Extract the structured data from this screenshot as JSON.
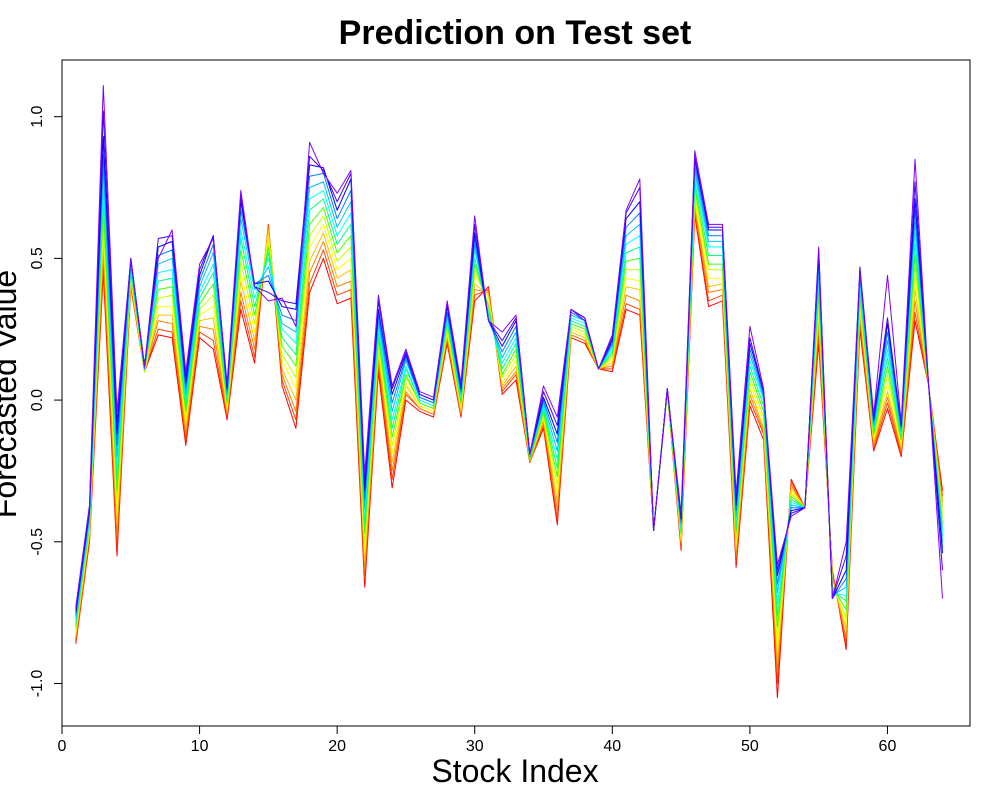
{
  "chart_data": {
    "type": "line",
    "title": "Prediction on Test set",
    "xlabel": "Stock Index",
    "ylabel": "Forecasted Value",
    "xlim": [
      0,
      66
    ],
    "ylim": [
      -1.15,
      1.2
    ],
    "xticks": [
      0,
      10,
      20,
      30,
      40,
      50,
      60
    ],
    "yticks": [
      -1.0,
      -0.5,
      0.0,
      0.5,
      1.0
    ],
    "ytick_labels": [
      "-1.0",
      "-0.5",
      "0.0",
      "0.5",
      "1.0"
    ],
    "x": [
      1,
      2,
      3,
      4,
      5,
      6,
      7,
      8,
      9,
      10,
      11,
      12,
      13,
      14,
      15,
      16,
      17,
      18,
      19,
      20,
      21,
      22,
      23,
      24,
      25,
      26,
      27,
      28,
      29,
      30,
      31,
      32,
      33,
      34,
      35,
      36,
      37,
      38,
      39,
      40,
      41,
      42,
      43,
      44,
      45,
      46,
      47,
      48,
      49,
      50,
      51,
      52,
      53,
      54,
      55,
      56,
      57,
      58,
      59,
      60,
      61,
      62,
      63,
      64
    ],
    "series_colors": [
      "#ff0000",
      "#ff4000",
      "#ff8000",
      "#ffbf00",
      "#ffff00",
      "#bfff00",
      "#40ff00",
      "#00ff80",
      "#00ffff",
      "#00bfff",
      "#0080ff",
      "#0000ff",
      "#4000ff",
      "#8000ff"
    ],
    "series": [
      {
        "values": [
          -0.86,
          -0.5,
          0.45,
          -0.55,
          0.4,
          0.1,
          0.23,
          0.22,
          -0.16,
          0.22,
          0.18,
          -0.07,
          0.32,
          0.13,
          0.62,
          0.05,
          -0.1,
          0.38,
          0.5,
          0.34,
          0.36,
          -0.66,
          0.1,
          -0.31,
          0.0,
          -0.04,
          -0.06,
          0.2,
          -0.06,
          0.35,
          0.4,
          0.02,
          0.07,
          -0.22,
          -0.1,
          -0.44,
          0.22,
          0.2,
          0.11,
          0.1,
          0.32,
          0.3,
          -0.46,
          0.03,
          -0.53,
          0.65,
          0.33,
          0.35,
          -0.59,
          -0.02,
          -0.14,
          -1.05,
          -0.28,
          -0.38,
          0.2,
          -0.6,
          -0.88,
          0.25,
          -0.18,
          -0.03,
          -0.2,
          0.28,
          0.05,
          -0.32
        ]
      },
      {
        "values": [
          -0.85,
          -0.49,
          0.48,
          -0.52,
          0.4,
          0.1,
          0.25,
          0.24,
          -0.14,
          0.24,
          0.21,
          -0.06,
          0.35,
          0.15,
          0.62,
          0.07,
          -0.07,
          0.41,
          0.53,
          0.37,
          0.39,
          -0.63,
          0.12,
          -0.28,
          0.02,
          -0.03,
          -0.05,
          0.21,
          -0.05,
          0.37,
          0.39,
          0.03,
          0.09,
          -0.22,
          -0.09,
          -0.42,
          0.23,
          0.21,
          0.11,
          0.11,
          0.34,
          0.32,
          -0.46,
          0.03,
          -0.52,
          0.66,
          0.35,
          0.37,
          -0.57,
          0.0,
          -0.12,
          -1.0,
          -0.29,
          -0.38,
          0.23,
          -0.61,
          -0.86,
          0.27,
          -0.17,
          -0.01,
          -0.19,
          0.31,
          0.05,
          -0.34
        ]
      },
      {
        "values": [
          -0.84,
          -0.48,
          0.52,
          -0.48,
          0.41,
          0.1,
          0.28,
          0.27,
          -0.12,
          0.26,
          0.25,
          -0.05,
          0.38,
          0.18,
          0.61,
          0.09,
          -0.04,
          0.45,
          0.56,
          0.4,
          0.42,
          -0.6,
          0.14,
          -0.25,
          0.03,
          -0.03,
          -0.05,
          0.22,
          -0.05,
          0.39,
          0.38,
          0.04,
          0.1,
          -0.22,
          -0.08,
          -0.39,
          0.23,
          0.21,
          0.11,
          0.12,
          0.37,
          0.35,
          -0.46,
          0.03,
          -0.51,
          0.68,
          0.38,
          0.39,
          -0.55,
          0.02,
          -0.11,
          -0.96,
          -0.3,
          -0.38,
          0.26,
          -0.62,
          -0.84,
          0.29,
          -0.16,
          0.01,
          -0.18,
          0.35,
          0.05,
          -0.36
        ]
      },
      {
        "values": [
          -0.83,
          -0.47,
          0.56,
          -0.44,
          0.42,
          0.1,
          0.3,
          0.3,
          -0.1,
          0.28,
          0.29,
          -0.04,
          0.42,
          0.21,
          0.6,
          0.11,
          0.0,
          0.49,
          0.59,
          0.43,
          0.46,
          -0.57,
          0.16,
          -0.22,
          0.05,
          -0.02,
          -0.04,
          0.23,
          -0.04,
          0.41,
          0.37,
          0.05,
          0.12,
          -0.21,
          -0.07,
          -0.36,
          0.24,
          0.22,
          0.11,
          0.13,
          0.4,
          0.39,
          -0.46,
          0.03,
          -0.5,
          0.69,
          0.4,
          0.41,
          -0.53,
          0.04,
          -0.1,
          -0.92,
          -0.31,
          -0.38,
          0.29,
          -0.63,
          -0.81,
          0.31,
          -0.15,
          0.03,
          -0.17,
          0.39,
          0.05,
          -0.38
        ]
      },
      {
        "values": [
          -0.82,
          -0.46,
          0.6,
          -0.4,
          0.43,
          0.1,
          0.33,
          0.33,
          -0.08,
          0.3,
          0.33,
          -0.03,
          0.45,
          0.24,
          0.58,
          0.14,
          0.04,
          0.54,
          0.62,
          0.46,
          0.5,
          -0.54,
          0.18,
          -0.19,
          0.06,
          -0.02,
          -0.04,
          0.24,
          -0.03,
          0.44,
          0.36,
          0.06,
          0.14,
          -0.21,
          -0.06,
          -0.33,
          0.25,
          0.23,
          0.11,
          0.14,
          0.43,
          0.42,
          -0.46,
          0.03,
          -0.49,
          0.71,
          0.43,
          0.43,
          -0.51,
          0.06,
          -0.08,
          -0.88,
          -0.32,
          -0.38,
          0.32,
          -0.64,
          -0.79,
          0.33,
          -0.14,
          0.06,
          -0.16,
          0.43,
          0.05,
          -0.4
        ]
      },
      {
        "values": [
          -0.81,
          -0.45,
          0.64,
          -0.36,
          0.44,
          0.1,
          0.36,
          0.37,
          -0.06,
          0.32,
          0.37,
          -0.02,
          0.49,
          0.27,
          0.56,
          0.16,
          0.08,
          0.58,
          0.65,
          0.49,
          0.54,
          -0.51,
          0.2,
          -0.16,
          0.08,
          -0.01,
          -0.03,
          0.25,
          -0.02,
          0.46,
          0.34,
          0.08,
          0.16,
          -0.21,
          -0.05,
          -0.3,
          0.26,
          0.24,
          0.11,
          0.15,
          0.46,
          0.46,
          -0.46,
          0.03,
          -0.48,
          0.73,
          0.46,
          0.46,
          -0.49,
          0.08,
          -0.06,
          -0.84,
          -0.33,
          -0.38,
          0.35,
          -0.65,
          -0.77,
          0.35,
          -0.13,
          0.09,
          -0.15,
          0.47,
          0.05,
          -0.42
        ]
      },
      {
        "values": [
          -0.8,
          -0.44,
          0.69,
          -0.32,
          0.45,
          0.11,
          0.39,
          0.4,
          -0.04,
          0.34,
          0.41,
          -0.01,
          0.53,
          0.3,
          0.54,
          0.19,
          0.12,
          0.62,
          0.68,
          0.52,
          0.58,
          -0.47,
          0.22,
          -0.13,
          0.09,
          -0.01,
          -0.03,
          0.27,
          -0.01,
          0.48,
          0.33,
          0.09,
          0.18,
          -0.21,
          -0.04,
          -0.27,
          0.27,
          0.25,
          0.11,
          0.16,
          0.49,
          0.5,
          -0.46,
          0.03,
          -0.47,
          0.75,
          0.48,
          0.48,
          -0.47,
          0.1,
          -0.04,
          -0.8,
          -0.34,
          -0.38,
          0.38,
          -0.66,
          -0.74,
          0.37,
          -0.12,
          0.12,
          -0.14,
          0.51,
          0.05,
          -0.44
        ]
      },
      {
        "values": [
          -0.79,
          -0.43,
          0.74,
          -0.28,
          0.46,
          0.11,
          0.42,
          0.43,
          -0.02,
          0.36,
          0.45,
          0.0,
          0.57,
          0.33,
          0.52,
          0.22,
          0.16,
          0.67,
          0.71,
          0.55,
          0.62,
          -0.44,
          0.24,
          -0.1,
          0.11,
          0.0,
          -0.02,
          0.28,
          0.0,
          0.5,
          0.31,
          0.11,
          0.2,
          -0.2,
          -0.03,
          -0.24,
          0.28,
          0.26,
          0.11,
          0.17,
          0.52,
          0.54,
          -0.46,
          0.04,
          -0.46,
          0.77,
          0.51,
          0.51,
          -0.45,
          0.12,
          -0.02,
          -0.76,
          -0.35,
          -0.38,
          0.41,
          -0.67,
          -0.71,
          0.39,
          -0.11,
          0.15,
          -0.13,
          0.55,
          0.05,
          -0.46
        ]
      },
      {
        "values": [
          -0.78,
          -0.42,
          0.78,
          -0.24,
          0.47,
          0.11,
          0.45,
          0.46,
          0.0,
          0.38,
          0.48,
          0.01,
          0.6,
          0.36,
          0.5,
          0.25,
          0.2,
          0.71,
          0.74,
          0.58,
          0.66,
          -0.41,
          0.26,
          -0.07,
          0.12,
          0.0,
          -0.02,
          0.29,
          0.01,
          0.53,
          0.3,
          0.13,
          0.22,
          -0.2,
          -0.02,
          -0.21,
          0.29,
          0.27,
          0.11,
          0.18,
          0.55,
          0.58,
          -0.46,
          0.04,
          -0.45,
          0.79,
          0.54,
          0.54,
          -0.43,
          0.14,
          0.0,
          -0.72,
          -0.36,
          -0.38,
          0.44,
          -0.68,
          -0.69,
          0.41,
          -0.1,
          0.18,
          -0.12,
          0.59,
          0.05,
          -0.48
        ]
      },
      {
        "values": [
          -0.77,
          -0.41,
          0.82,
          -0.2,
          0.48,
          0.11,
          0.48,
          0.5,
          0.02,
          0.4,
          0.52,
          0.02,
          0.64,
          0.39,
          0.47,
          0.27,
          0.24,
          0.75,
          0.77,
          0.61,
          0.7,
          -0.38,
          0.28,
          -0.04,
          0.14,
          0.01,
          -0.01,
          0.3,
          0.02,
          0.55,
          0.29,
          0.15,
          0.24,
          -0.2,
          -0.01,
          -0.18,
          0.3,
          0.28,
          0.11,
          0.19,
          0.58,
          0.62,
          -0.46,
          0.04,
          -0.44,
          0.81,
          0.56,
          0.56,
          -0.41,
          0.16,
          0.01,
          -0.68,
          -0.37,
          -0.38,
          0.46,
          -0.69,
          -0.66,
          0.43,
          -0.09,
          0.21,
          -0.11,
          0.63,
          0.05,
          -0.5
        ]
      },
      {
        "values": [
          -0.76,
          -0.4,
          0.87,
          -0.16,
          0.49,
          0.11,
          0.51,
          0.53,
          0.04,
          0.42,
          0.55,
          0.03,
          0.67,
          0.41,
          0.44,
          0.3,
          0.28,
          0.79,
          0.8,
          0.64,
          0.74,
          -0.35,
          0.3,
          -0.01,
          0.15,
          0.01,
          -0.01,
          0.31,
          0.03,
          0.57,
          0.28,
          0.17,
          0.26,
          -0.19,
          0.0,
          -0.15,
          0.31,
          0.28,
          0.11,
          0.2,
          0.61,
          0.66,
          -0.46,
          0.04,
          -0.43,
          0.83,
          0.58,
          0.58,
          -0.39,
          0.18,
          0.02,
          -0.65,
          -0.38,
          -0.38,
          0.49,
          -0.7,
          -0.63,
          0.45,
          -0.08,
          0.24,
          -0.1,
          0.67,
          0.05,
          -0.52
        ]
      },
      {
        "values": [
          -0.75,
          -0.39,
          0.93,
          -0.12,
          0.5,
          0.12,
          0.54,
          0.56,
          0.06,
          0.44,
          0.58,
          0.04,
          0.7,
          0.41,
          0.42,
          0.33,
          0.32,
          0.83,
          0.82,
          0.67,
          0.78,
          -0.32,
          0.32,
          0.02,
          0.16,
          0.02,
          0.0,
          0.33,
          0.04,
          0.59,
          0.28,
          0.19,
          0.28,
          -0.19,
          0.01,
          -0.12,
          0.32,
          0.29,
          0.11,
          0.21,
          0.64,
          0.7,
          -0.46,
          0.04,
          -0.42,
          0.85,
          0.6,
          0.6,
          -0.37,
          0.2,
          0.03,
          -0.62,
          -0.39,
          -0.38,
          0.51,
          -0.7,
          -0.6,
          0.46,
          -0.07,
          0.27,
          -0.09,
          0.71,
          0.05,
          -0.54
        ]
      },
      {
        "values": [
          -0.74,
          -0.38,
          1.02,
          -0.08,
          0.5,
          0.12,
          0.57,
          0.58,
          0.08,
          0.46,
          0.58,
          0.05,
          0.72,
          0.4,
          0.38,
          0.35,
          0.34,
          0.86,
          0.81,
          0.7,
          0.8,
          -0.29,
          0.35,
          0.04,
          0.17,
          0.02,
          0.0,
          0.34,
          0.05,
          0.62,
          0.28,
          0.21,
          0.29,
          -0.19,
          0.03,
          -0.09,
          0.32,
          0.29,
          0.11,
          0.22,
          0.66,
          0.75,
          -0.46,
          0.04,
          -0.41,
          0.86,
          0.61,
          0.61,
          -0.35,
          0.22,
          0.03,
          -0.6,
          -0.4,
          -0.38,
          0.53,
          -0.7,
          -0.55,
          0.47,
          -0.06,
          0.29,
          -0.09,
          0.77,
          0.05,
          -0.6
        ]
      },
      {
        "values": [
          -0.73,
          -0.37,
          1.11,
          -0.04,
          0.5,
          0.12,
          0.5,
          0.6,
          0.1,
          0.48,
          0.57,
          0.06,
          0.74,
          0.4,
          0.35,
          0.36,
          0.26,
          0.91,
          0.8,
          0.73,
          0.81,
          -0.26,
          0.37,
          0.05,
          0.18,
          0.03,
          0.01,
          0.35,
          0.06,
          0.65,
          0.28,
          0.24,
          0.3,
          -0.19,
          0.05,
          -0.06,
          0.32,
          0.28,
          0.11,
          0.23,
          0.67,
          0.78,
          -0.46,
          0.04,
          -0.4,
          0.88,
          0.62,
          0.62,
          -0.33,
          0.26,
          0.04,
          -0.58,
          -0.41,
          -0.38,
          0.54,
          -0.7,
          -0.5,
          0.45,
          -0.05,
          0.44,
          -0.08,
          0.85,
          0.05,
          -0.7
        ]
      }
    ]
  }
}
